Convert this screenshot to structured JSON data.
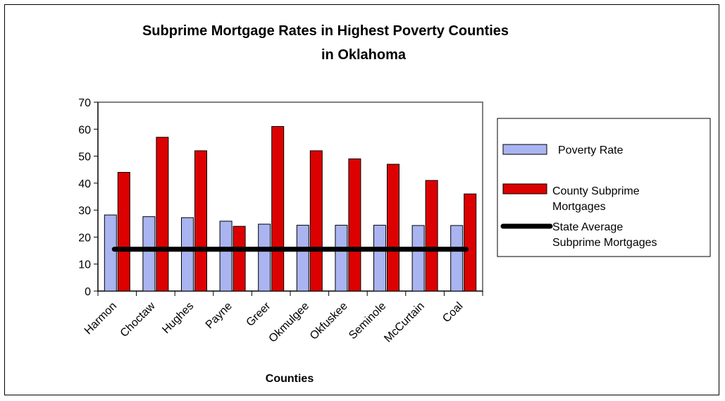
{
  "chart_data": {
    "type": "bar",
    "title_line1": "Subprime Mortgage Rates in Highest Poverty Counties",
    "title_line2": "in Oklahoma",
    "xlabel": "Counties",
    "ylabel": "",
    "ylim": [
      0,
      70
    ],
    "yticks": [
      "0",
      "10",
      "20",
      "30",
      "40",
      "50",
      "60",
      "70"
    ],
    "grid": false,
    "legend_position": "right",
    "categories": [
      "Harmon",
      "Choctaw",
      "Hughes",
      "Payne",
      "Greer",
      "Okmulgee",
      "Okfuskee",
      "Seminole",
      "McCurtain",
      "Coal"
    ],
    "series": [
      {
        "name": "Poverty Rate",
        "color": "#aab4f0",
        "values": [
          28.2,
          27.6,
          27.2,
          25.9,
          24.8,
          24.4,
          24.4,
          24.4,
          24.3,
          24.3
        ]
      },
      {
        "name": "County Subprime Mortgages",
        "color": "#dd0000",
        "values": [
          44,
          57,
          52,
          24,
          61,
          52,
          49,
          47,
          41,
          36
        ]
      }
    ],
    "reference_line": {
      "name": "State Average Subprime Mortgages",
      "value": 15.5,
      "color": "#000000"
    },
    "legend": {
      "item1_label": "Poverty Rate",
      "item2_line1": "County Subprime",
      "item2_line2": "Mortgages",
      "item3_line1": "State Average",
      "item3_line2": "Subprime Mortgages"
    }
  }
}
